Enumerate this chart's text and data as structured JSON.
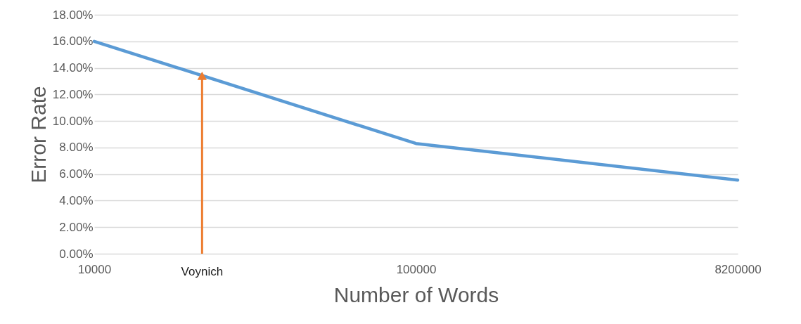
{
  "chart_data": {
    "type": "line",
    "xlabel": "Number of Words",
    "ylabel": "Error Rate",
    "categories": [
      "10000",
      "100000",
      "8200000"
    ],
    "series": [
      {
        "color": "#5b9bd5",
        "values": [
          16.0,
          8.3,
          5.55
        ]
      }
    ],
    "ylim": [
      0,
      18
    ],
    "yticks": [
      {
        "value": 0,
        "label": "0.00%"
      },
      {
        "value": 2,
        "label": "2.00%"
      },
      {
        "value": 4,
        "label": "4.00%"
      },
      {
        "value": 6,
        "label": "6.00%"
      },
      {
        "value": 8,
        "label": "8.00%"
      },
      {
        "value": 10,
        "label": "10.00%"
      },
      {
        "value": 12,
        "label": "12.00%"
      },
      {
        "value": 14,
        "label": "14.00%"
      },
      {
        "value": 16,
        "label": "16.00%"
      },
      {
        "value": 18,
        "label": "18.00%"
      }
    ],
    "grid": "y",
    "marker": "none",
    "line_style": "solid",
    "annotations": [
      {
        "text": "Voynich",
        "y": 13.4
      }
    ]
  }
}
